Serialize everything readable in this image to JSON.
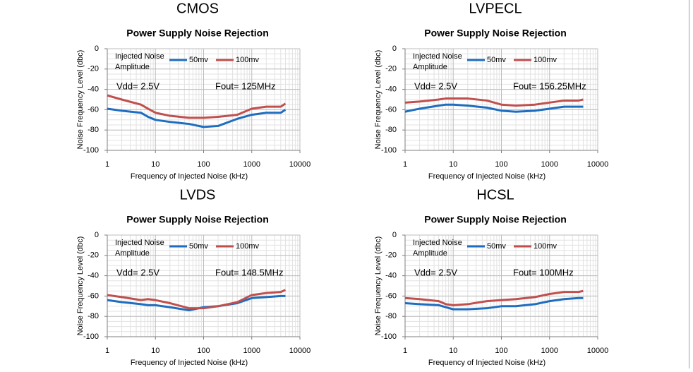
{
  "chart_data": [
    {
      "type": "line",
      "heading": "CMOS",
      "title": "Power Supply Noise Rejection",
      "xlabel": "Frequency of Injected Noise (kHz)",
      "ylabel": "Noise Frequency Level (dbc)",
      "legend_title": [
        "Injected Noise",
        "Amplitude"
      ],
      "annotations": [
        "Vdd= 2.5V",
        "Fout= 125MHz"
      ],
      "xscale": "log",
      "grid": true,
      "xlim": [
        1,
        10000
      ],
      "xticks": [
        1,
        10,
        100,
        1000,
        10000
      ],
      "ylim": [
        -100,
        0
      ],
      "yticks": [
        0,
        -20,
        -40,
        -60,
        -80,
        -100
      ],
      "x": [
        1,
        2,
        5,
        7,
        10,
        20,
        50,
        100,
        200,
        500,
        1000,
        2000,
        4000,
        5000
      ],
      "series": [
        {
          "name": "50mv",
          "color": "#1f6dbf",
          "values": [
            -59,
            -61,
            -63,
            -67,
            -70,
            -72,
            -74,
            -77,
            -76,
            -69,
            -65,
            -63,
            -63,
            -60
          ]
        },
        {
          "name": "100mv",
          "color": "#c0504d",
          "values": [
            -46,
            -50,
            -55,
            -59,
            -63,
            -66,
            -68,
            -68,
            -67,
            -65,
            -59,
            -57,
            -57,
            -54
          ]
        }
      ]
    },
    {
      "type": "line",
      "heading": "LVPECL",
      "title": "Power Supply Noise Rejection",
      "xlabel": "Frequency of Injected Noise (kHz)",
      "ylabel": "Noise Frequency Level (dbc)",
      "legend_title": [
        "Injected Noise",
        "Amplitude"
      ],
      "annotations": [
        "Vdd= 2.5V",
        "Fout= 156.25MHz"
      ],
      "xscale": "log",
      "grid": true,
      "xlim": [
        1,
        10000
      ],
      "xticks": [
        1,
        10,
        100,
        1000,
        10000
      ],
      "ylim": [
        -100,
        0
      ],
      "yticks": [
        0,
        -20,
        -40,
        -60,
        -80,
        -100
      ],
      "x": [
        1,
        2,
        5,
        7,
        10,
        20,
        50,
        100,
        200,
        500,
        1000,
        2000,
        4000,
        5000
      ],
      "series": [
        {
          "name": "50mv",
          "color": "#1f6dbf",
          "values": [
            -62,
            -59,
            -56,
            -55,
            -55,
            -56,
            -58,
            -61,
            -62,
            -61,
            -59,
            -57,
            -57,
            -57
          ]
        },
        {
          "name": "100mv",
          "color": "#c0504d",
          "values": [
            -53,
            -52,
            -50,
            -49,
            -49,
            -49,
            -51,
            -55,
            -56,
            -55,
            -53,
            -51,
            -51,
            -50
          ]
        }
      ]
    },
    {
      "type": "line",
      "heading": "LVDS",
      "title": "Power Supply Noise Rejection",
      "xlabel": "Frequency of Injected Noise (kHz)",
      "ylabel": "Noise Frequency Level (dbc)",
      "legend_title": [
        "Injected Noise",
        "Amplitude"
      ],
      "annotations": [
        "Vdd= 2.5V",
        "Fout= 148.5MHz"
      ],
      "xscale": "log",
      "grid": true,
      "xlim": [
        1,
        10000
      ],
      "xticks": [
        1,
        10,
        100,
        1000,
        10000
      ],
      "ylim": [
        -100,
        0
      ],
      "yticks": [
        0,
        -20,
        -40,
        -60,
        -80,
        -100
      ],
      "x": [
        1,
        2,
        5,
        7,
        10,
        20,
        50,
        100,
        200,
        500,
        1000,
        2000,
        4000,
        5000
      ],
      "series": [
        {
          "name": "50mv",
          "color": "#1f6dbf",
          "values": [
            -64,
            -66,
            -68,
            -69,
            -69,
            -71,
            -74,
            -71,
            -70,
            -67,
            -62,
            -61,
            -60,
            -60
          ]
        },
        {
          "name": "100mv",
          "color": "#c0504d",
          "values": [
            -59,
            -61,
            -64,
            -63,
            -64,
            -67,
            -72,
            -72,
            -70,
            -66,
            -59,
            -57,
            -56,
            -54
          ]
        }
      ]
    },
    {
      "type": "line",
      "heading": "HCSL",
      "title": "Power Supply Noise Rejection",
      "xlabel": "Frequency of Injected Noise (kHz)",
      "ylabel": "Noise Frequency Level (dbc)",
      "legend_title": [
        "Injected Noise",
        "Amplitude"
      ],
      "annotations": [
        "Vdd= 2.5V",
        "Fout= 100MHz"
      ],
      "xscale": "log",
      "grid": true,
      "xlim": [
        1,
        10000
      ],
      "xticks": [
        1,
        10,
        100,
        1000,
        10000
      ],
      "ylim": [
        -100,
        0
      ],
      "yticks": [
        0,
        -20,
        -40,
        -60,
        -80,
        -100
      ],
      "x": [
        1,
        2,
        5,
        7,
        10,
        20,
        50,
        100,
        200,
        500,
        1000,
        2000,
        4000,
        5000
      ],
      "series": [
        {
          "name": "50mv",
          "color": "#1f6dbf",
          "values": [
            -67,
            -68,
            -69,
            -71,
            -73,
            -73,
            -72,
            -70,
            -70,
            -68,
            -65,
            -63,
            -62,
            -62
          ]
        },
        {
          "name": "100mv",
          "color": "#c0504d",
          "values": [
            -62,
            -63,
            -65,
            -68,
            -69,
            -68,
            -65,
            -64,
            -63,
            -61,
            -58,
            -56,
            -56,
            -55
          ]
        }
      ]
    }
  ]
}
